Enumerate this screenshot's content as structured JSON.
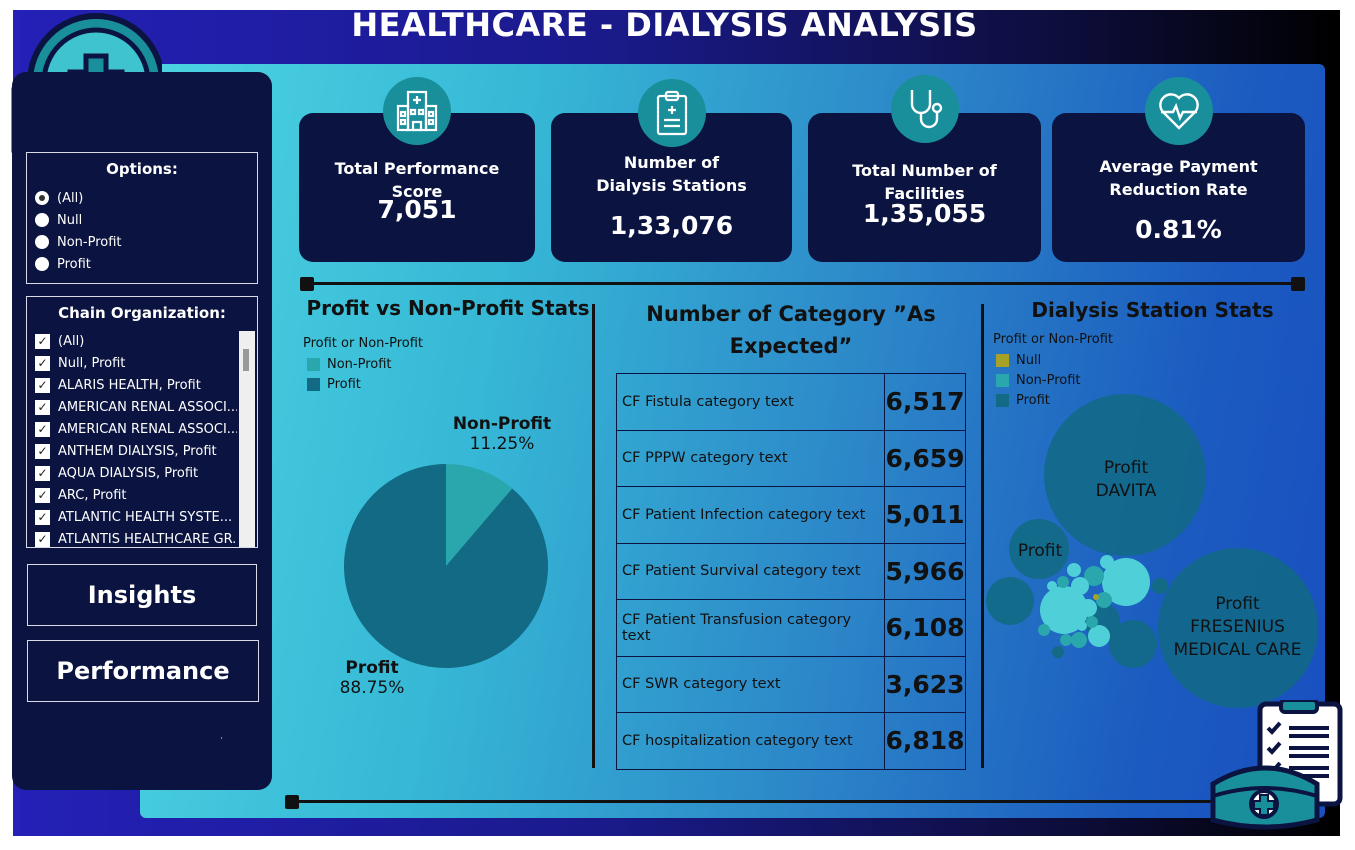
{
  "title": "HEALTHCARE - DIALYSIS  ANALYSIS",
  "colors": {
    "non_profit": "#2aa7ad",
    "profit": "#126a85",
    "null": "#a5a227",
    "card_bg": "#0b1440",
    "icon_bg": "#1a8f9c"
  },
  "options": {
    "title": "Options:",
    "items": [
      {
        "label": "(All)",
        "selected": true
      },
      {
        "label": "Null",
        "selected": false
      },
      {
        "label": "Non-Profit",
        "selected": false
      },
      {
        "label": "Profit",
        "selected": false
      }
    ]
  },
  "chain": {
    "title": "Chain Organization:",
    "items": [
      {
        "label": "(All)",
        "checked": true
      },
      {
        "label": "Null, Profit",
        "checked": true
      },
      {
        "label": "ALARIS HEALTH, Profit",
        "checked": true
      },
      {
        "label": "AMERICAN RENAL ASSOCI...",
        "checked": true
      },
      {
        "label": "AMERICAN RENAL ASSOCI...",
        "checked": true
      },
      {
        "label": "ANTHEM DIALYSIS, Profit",
        "checked": true
      },
      {
        "label": "AQUA DIALYSIS, Profit",
        "checked": true
      },
      {
        "label": "ARC, Profit",
        "checked": true
      },
      {
        "label": "ATLANTIC HEALTH SYSTE...",
        "checked": true
      },
      {
        "label": "ATLANTIS HEALTHCARE GR...",
        "checked": true
      }
    ]
  },
  "nav": {
    "insights": "Insights",
    "performance": "Performance",
    "mark": "˙"
  },
  "kpis": [
    {
      "label": "Total Performance Score",
      "value": "7,051",
      "icon": "hospital-building-icon"
    },
    {
      "label": "Number of Dialysis Stations",
      "value": "1,33,076",
      "icon": "clipboard-medical-icon"
    },
    {
      "label": "Total Number of Facilities",
      "value": "1,35,055",
      "icon": "stethoscope-icon"
    },
    {
      "label": "Average Payment Reduction Rate",
      "value": "0.81%",
      "icon": "heart-pulse-icon"
    }
  ],
  "pie": {
    "title": "Profit vs Non-Profit Stats",
    "legend_title": "Profit or Non-Profit",
    "legend": [
      "Non-Profit",
      "Profit"
    ]
  },
  "categories": {
    "title": "Number of Category ”As Expected”"
  },
  "bubble": {
    "title": "Dialysis Station Stats",
    "legend_title": "Profit or Non-Profit",
    "legend": [
      "Null",
      "Non-Profit",
      "Profit"
    ],
    "labels": [
      {
        "line1": "Profit",
        "line2": "DAVITA"
      },
      {
        "line1": "Profit"
      },
      {
        "line1": "Profit",
        "line2": "FRESENIUS",
        "line3": "MEDICAL CARE"
      }
    ]
  },
  "chart_data": [
    {
      "type": "pie",
      "title": "Profit vs Non-Profit Stats",
      "legend_title": "Profit or Non-Profit",
      "slices": [
        {
          "label": "Non-Profit",
          "value": 11.25,
          "display": "11.25%"
        },
        {
          "label": "Profit",
          "value": 88.75,
          "display": "88.75%"
        }
      ]
    },
    {
      "type": "table",
      "title": "Number of Category ”As Expected”",
      "rows": [
        {
          "category": "CF Fistula category text",
          "value": "6,517"
        },
        {
          "category": "CF PPPW category text",
          "value": "6,659"
        },
        {
          "category": "CF Patient Infection category text",
          "value": "5,011"
        },
        {
          "category": "CF Patient Survival category text",
          "value": "5,966"
        },
        {
          "category": "CF Patient Transfusion category text",
          "value": "6,108"
        },
        {
          "category": "CF SWR category text",
          "value": "3,623"
        },
        {
          "category": "CF hospitalization category text",
          "value": "6,818"
        }
      ]
    },
    {
      "type": "bubble",
      "title": "Dialysis Station Stats",
      "legend_title": "Profit or Non-Profit",
      "legend": [
        "Null",
        "Non-Profit",
        "Profit"
      ]
    }
  ]
}
